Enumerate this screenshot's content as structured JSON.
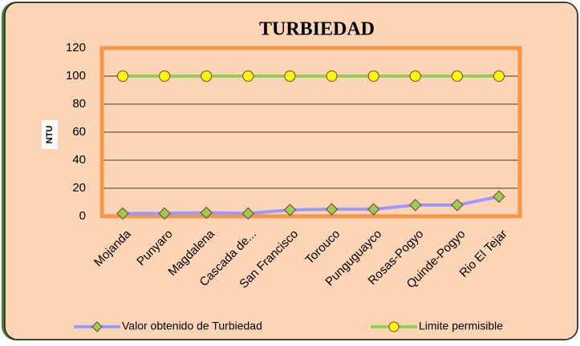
{
  "chart_data": {
    "type": "line",
    "title": "TURBIEDAD",
    "y_label": "NTU",
    "categories": [
      "Mojanda",
      "Punyaro",
      "Magdalena",
      "Cascada de...",
      "San Francisco",
      "Torouco",
      "Punguguayco",
      "Rosas-Pogyo",
      "Quinde-Pogyo",
      "Rio El Tejar"
    ],
    "series": [
      {
        "name": "Valor obtenido de Turbiedad",
        "color": "#9999ff",
        "marker_color": "#92d050",
        "marker": "diamond",
        "values": [
          2,
          2,
          2.5,
          2,
          4.5,
          5,
          5,
          8,
          8,
          14
        ]
      },
      {
        "name": "Limite permisible",
        "color": "#92d050",
        "marker_color": "#ffff00",
        "marker": "circle",
        "values": [
          100,
          100,
          100,
          100,
          100,
          100,
          100,
          100,
          100,
          100
        ]
      }
    ],
    "ylim": [
      0,
      120
    ],
    "yticks": [
      0,
      20,
      40,
      60,
      80,
      100,
      120
    ],
    "grid": true,
    "legend": "bottom"
  }
}
